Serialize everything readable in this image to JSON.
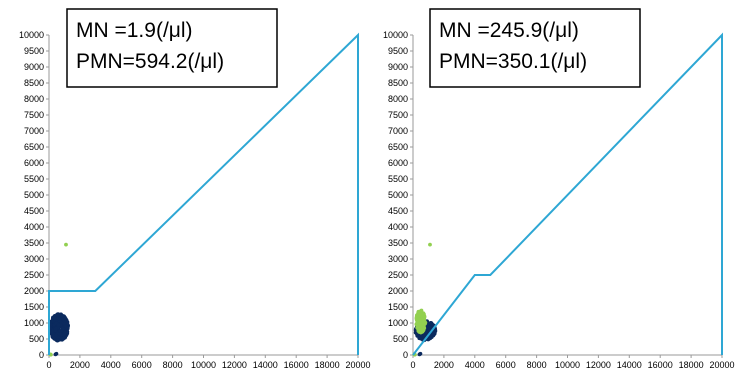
{
  "colors": {
    "gate": "#2EA7D4",
    "mn_cluster": "#0B2A5E",
    "pmn_cluster": "#92D050",
    "axis": "#9A9A9A",
    "text": "#000000"
  },
  "chart_data": [
    {
      "type": "scatter",
      "title": "",
      "xlabel": "",
      "ylabel": "",
      "xlim": [
        0,
        20000
      ],
      "ylim": [
        0,
        10000
      ],
      "x_ticks": [
        "0",
        "2000",
        "4000",
        "6000",
        "8000",
        "10000",
        "12000",
        "14000",
        "16000",
        "18000",
        "20000"
      ],
      "y_ticks": [
        "0",
        "500",
        "1000",
        "1500",
        "2000",
        "2500",
        "3000",
        "3500",
        "4000",
        "4500",
        "5000",
        "5500",
        "6000",
        "6500",
        "7000",
        "7500",
        "8000",
        "8500",
        "9000",
        "9500",
        "10000"
      ],
      "grid": false,
      "annotation": [
        "MN   =1.9(/μl)",
        "PMN=594.2(/μl)"
      ],
      "gate_polyline": {
        "x": [
          0,
          0,
          3000,
          20000,
          20000
        ],
        "y": [
          0,
          2000,
          2000,
          10000,
          0
        ]
      },
      "series": [
        {
          "color": "#0B2A5E",
          "cluster": {
            "cx": 650,
            "cy": 860,
            "rx": 600,
            "ry": 420,
            "n": 320,
            "x_max": 2300,
            "y_max": 1500
          },
          "points": [
            [
              420,
              20
            ],
            [
              480,
              40
            ]
          ]
        },
        {
          "color": "#92D050",
          "points": [
            [
              1100,
              3450
            ],
            [
              80,
              20
            ],
            [
              120,
              10
            ]
          ]
        }
      ]
    },
    {
      "type": "scatter",
      "title": "",
      "xlabel": "",
      "ylabel": "",
      "xlim": [
        0,
        20000
      ],
      "ylim": [
        0,
        10000
      ],
      "x_ticks": [
        "0",
        "2000",
        "4000",
        "6000",
        "8000",
        "10000",
        "12000",
        "14000",
        "16000",
        "18000",
        "20000"
      ],
      "y_ticks": [
        "0",
        "500",
        "1000",
        "1500",
        "2000",
        "2500",
        "3000",
        "3500",
        "4000",
        "4500",
        "5000",
        "5500",
        "6000",
        "6500",
        "7000",
        "7500",
        "8000",
        "8500",
        "9000",
        "9500",
        "10000"
      ],
      "grid": false,
      "annotation": [
        "MN   =245.9(/μl)",
        "PMN=350.1(/μl)"
      ],
      "gate_polyline": {
        "x": [
          0,
          0,
          4000,
          5000,
          20000,
          20000
        ],
        "y": [
          0,
          0,
          2500,
          2500,
          10000,
          0
        ]
      },
      "series": [
        {
          "color": "#0B2A5E",
          "cluster": {
            "cx": 800,
            "cy": 760,
            "rx": 650,
            "ry": 300,
            "n": 260,
            "x_max": 2300,
            "y_max": 1100
          },
          "points": [
            [
              420,
              20
            ],
            [
              480,
              40
            ]
          ]
        },
        {
          "color": "#92D050",
          "cluster": {
            "cx": 500,
            "cy": 1050,
            "rx": 300,
            "ry": 350,
            "n": 200,
            "x_max": 900,
            "y_max": 1550
          },
          "points": [
            [
              1100,
              3450
            ],
            [
              80,
              20
            ],
            [
              120,
              10
            ]
          ]
        }
      ]
    }
  ]
}
